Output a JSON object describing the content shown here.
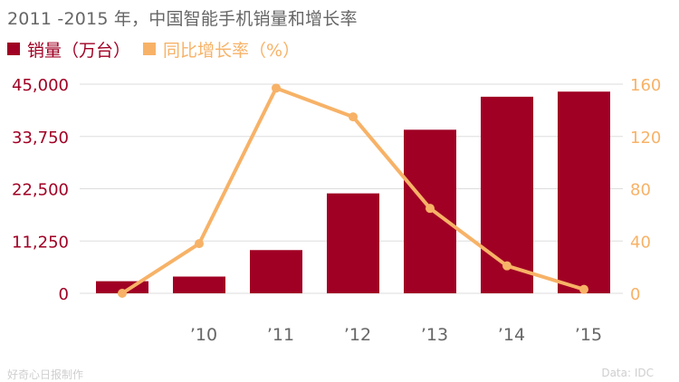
{
  "title": "2011 -2015 年，中国智能手机销量和增长率",
  "legend": [
    {
      "label": "销量（万台）",
      "color": "#A00024"
    },
    {
      "label": "同比增长率（%）",
      "color": "#F7B267"
    }
  ],
  "footer": {
    "source_left": "好奇心日报制作",
    "source_right": "Data: IDC"
  },
  "colors": {
    "bar": "#A00024",
    "line": "#F7B267",
    "axis_left": "#A00024",
    "axis_right": "#F7B267"
  },
  "chart_data": {
    "type": "bar",
    "title": "2011 -2015 年，中国智能手机销量和增长率",
    "categories": [
      "",
      "’10",
      "’11",
      "’12",
      "’13",
      "’14",
      "’15"
    ],
    "x_tick_labels": [
      "’10",
      "’11",
      "’12",
      "’13",
      "’14",
      "’15"
    ],
    "series": [
      {
        "name": "销量（万台）",
        "type": "bar",
        "axis": "left",
        "values": [
          2600,
          3600,
          9300,
          21500,
          35200,
          42300,
          43400
        ]
      },
      {
        "name": "同比增长率（%）",
        "type": "line",
        "axis": "right",
        "values": [
          0,
          38,
          157,
          135,
          65,
          21,
          3
        ]
      }
    ],
    "y_left": {
      "lim": [
        0,
        45000
      ],
      "ticks": [
        0,
        11250,
        22500,
        33750,
        45000
      ],
      "tick_labels": [
        "0",
        "11,250",
        "22,500",
        "33,750",
        "45,000"
      ]
    },
    "y_right": {
      "lim": [
        0,
        160
      ],
      "ticks": [
        0,
        40,
        80,
        120,
        160
      ],
      "tick_labels": [
        "0",
        "40",
        "80",
        "120",
        "160"
      ]
    },
    "grid": true
  }
}
